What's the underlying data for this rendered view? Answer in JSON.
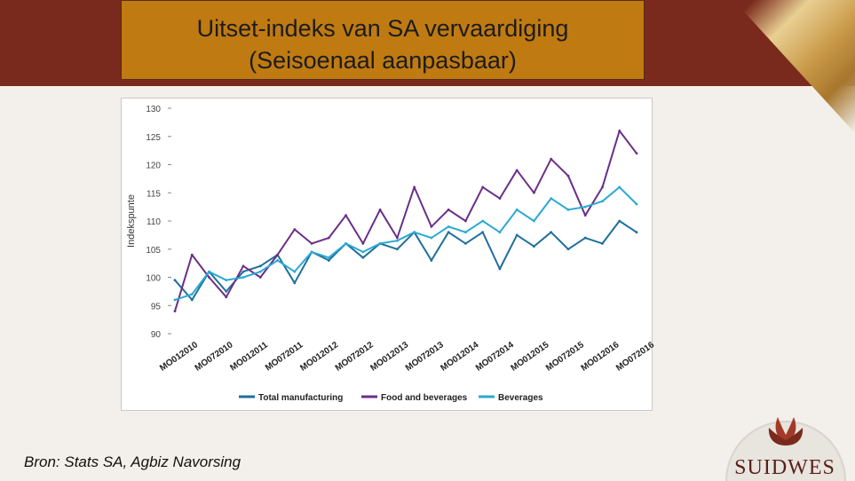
{
  "slide": {
    "title_line1": "Uitset-indeks van SA vervaardiging",
    "title_line2": "(Seisoenaal aanpasbaar)",
    "source": "Bron: Stats SA, Agbiz Navorsing",
    "logo_text": "SUIDWES"
  },
  "colors": {
    "band": "#7a2a1c",
    "title_box": "#bf7a12",
    "total": "#1f6f9b",
    "food": "#6b2f86",
    "bev": "#2aa9d2"
  },
  "chart_data": {
    "type": "line",
    "title": "",
    "xlabel": "",
    "ylabel": "Indekspunte",
    "ylim": [
      90,
      130
    ],
    "yticks": [
      90,
      95,
      100,
      105,
      110,
      115,
      120,
      125,
      130
    ],
    "grid": false,
    "legend_position": "bottom",
    "x_tick_labels": [
      "MO012010",
      "MO072010",
      "MO012011",
      "MO072011",
      "MO012012",
      "MO072012",
      "MO012013",
      "MO072013",
      "MO012014",
      "MO072014",
      "MO012015",
      "MO072015",
      "MO012016",
      "MO072016"
    ],
    "x": [
      "2010-01",
      "2010-04",
      "2010-07",
      "2010-10",
      "2011-01",
      "2011-04",
      "2011-07",
      "2011-10",
      "2012-01",
      "2012-04",
      "2012-07",
      "2012-10",
      "2013-01",
      "2013-04",
      "2013-07",
      "2013-10",
      "2014-01",
      "2014-04",
      "2014-07",
      "2014-10",
      "2015-01",
      "2015-04",
      "2015-07",
      "2015-10",
      "2016-01",
      "2016-04",
      "2016-07",
      "2016-10"
    ],
    "series": [
      {
        "name": "Total manufacturing",
        "color": "#1f6f9b",
        "values": [
          99.5,
          96,
          101,
          97.5,
          101,
          102,
          104,
          99,
          104.5,
          103,
          106,
          103.5,
          106,
          105,
          108,
          103,
          108,
          106,
          108,
          101.5,
          107.5,
          105.5,
          108,
          105,
          107,
          106,
          110,
          108
        ]
      },
      {
        "name": "Food and beverages",
        "color": "#6b2f86",
        "values": [
          94,
          104,
          100,
          96.5,
          102,
          100,
          104,
          108.5,
          106,
          107,
          111,
          106,
          112,
          107,
          116,
          109,
          112,
          110,
          116,
          114,
          119,
          115,
          121,
          118,
          111,
          116,
          126,
          122
        ]
      },
      {
        "name": "Beverages",
        "color": "#2aa9d2",
        "values": [
          96,
          97,
          101,
          99.5,
          100,
          101,
          103,
          101,
          104.5,
          103.5,
          106,
          104.5,
          106,
          106.5,
          108,
          107,
          109,
          108,
          110,
          108,
          112,
          110,
          114,
          112,
          112.5,
          113.5,
          116,
          113
        ]
      }
    ]
  }
}
